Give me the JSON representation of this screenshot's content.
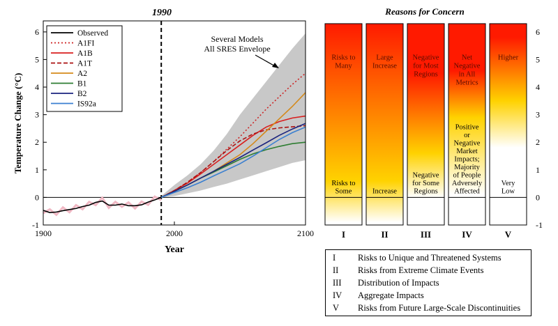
{
  "left_chart": {
    "title": "1990",
    "xlabel": "Year",
    "ylabel": "Temperature Change (°C)",
    "annotation_lines": [
      "Several Models",
      "All SRES Envelope"
    ]
  },
  "right_chart": {
    "title": "Reasons for Concern"
  },
  "concern_key": [
    {
      "numeral": "I",
      "text": "Risks to Unique and Threatened Systems"
    },
    {
      "numeral": "II",
      "text": "Risks from Extreme Climate Events"
    },
    {
      "numeral": "III",
      "text": "Distribution of Impacts"
    },
    {
      "numeral": "IV",
      "text": "Aggregate Impacts"
    },
    {
      "numeral": "V",
      "text": "Risks from Future Large-Scale Discontinuities"
    }
  ],
  "chart_data": [
    {
      "type": "line",
      "title": "1990",
      "xlabel": "Year",
      "ylabel": "Temperature Change (°C)",
      "xlim": [
        1900,
        2100
      ],
      "ylim": [
        -1,
        6.4
      ],
      "xticks": [
        1900,
        2000,
        2100
      ],
      "yticks": [
        -1,
        0,
        1,
        2,
        3,
        4,
        5,
        6
      ],
      "vline_x": 1990,
      "legend": "top-left",
      "observed": {
        "name": "Observed",
        "color": "#000000",
        "x": [
          1900,
          1905,
          1910,
          1915,
          1920,
          1925,
          1930,
          1935,
          1940,
          1945,
          1950,
          1955,
          1960,
          1965,
          1970,
          1975,
          1980,
          1985,
          1990
        ],
        "y": [
          -0.47,
          -0.55,
          -0.53,
          -0.48,
          -0.44,
          -0.4,
          -0.33,
          -0.28,
          -0.18,
          -0.13,
          -0.28,
          -0.28,
          -0.24,
          -0.3,
          -0.3,
          -0.27,
          -0.17,
          -0.09,
          0.0
        ]
      },
      "envelope": {
        "label": "Several Models All SRES Envelope",
        "color": "#c8c8c8",
        "x": [
          1990,
          2000,
          2010,
          2020,
          2030,
          2040,
          2050,
          2060,
          2070,
          2080,
          2090,
          2100
        ],
        "upper": [
          0.05,
          0.45,
          0.8,
          1.2,
          1.7,
          2.3,
          3.0,
          3.6,
          4.2,
          4.8,
          5.4,
          5.95
        ],
        "lower": [
          0.0,
          0.05,
          0.15,
          0.25,
          0.38,
          0.5,
          0.65,
          0.8,
          0.95,
          1.1,
          1.25,
          1.35
        ]
      },
      "x": [
        1990,
        2000,
        2010,
        2020,
        2030,
        2040,
        2050,
        2060,
        2070,
        2080,
        2090,
        2100
      ],
      "series": [
        {
          "name": "A1FI",
          "color": "#cc2222",
          "dash": "2,3",
          "values": [
            0.0,
            0.25,
            0.55,
            0.9,
            1.3,
            1.75,
            2.2,
            2.7,
            3.2,
            3.65,
            4.1,
            4.5
          ]
        },
        {
          "name": "A1B",
          "color": "#d81e1e",
          "dash": "",
          "values": [
            0.0,
            0.25,
            0.52,
            0.85,
            1.2,
            1.55,
            1.9,
            2.25,
            2.55,
            2.75,
            2.88,
            2.95
          ]
        },
        {
          "name": "A1T",
          "color": "#aa1111",
          "dash": "6,3",
          "values": [
            0.0,
            0.25,
            0.55,
            0.9,
            1.3,
            1.7,
            2.05,
            2.3,
            2.45,
            2.52,
            2.56,
            2.6
          ]
        },
        {
          "name": "A2",
          "color": "#d4891a",
          "dash": "",
          "values": [
            0.0,
            0.22,
            0.45,
            0.7,
            0.95,
            1.25,
            1.55,
            1.95,
            2.4,
            2.85,
            3.3,
            3.8
          ]
        },
        {
          "name": "B1",
          "color": "#2e7d32",
          "dash": "",
          "values": [
            0.0,
            0.22,
            0.45,
            0.7,
            0.92,
            1.15,
            1.38,
            1.58,
            1.73,
            1.85,
            1.95,
            2.0
          ]
        },
        {
          "name": "B2",
          "color": "#1a237e",
          "dash": "",
          "values": [
            0.0,
            0.22,
            0.45,
            0.7,
            0.95,
            1.2,
            1.45,
            1.72,
            1.98,
            2.25,
            2.48,
            2.68
          ]
        },
        {
          "name": "IS92a",
          "color": "#3a7fd0",
          "dash": "",
          "values": [
            0.0,
            0.18,
            0.35,
            0.55,
            0.78,
            1.0,
            1.22,
            1.5,
            1.8,
            2.1,
            2.35,
            2.55
          ]
        }
      ]
    },
    {
      "type": "bar",
      "title": "Reasons for Concern",
      "ylim": [
        -1,
        6.4
      ],
      "yticks": [
        -1,
        0,
        1,
        2,
        3,
        4,
        5,
        6
      ],
      "axis_side": "right",
      "categories": [
        "I",
        "II",
        "III",
        "IV",
        "V"
      ],
      "colors": {
        "high": "#ff1a00",
        "mid": "#ffd200",
        "low": "#ffffff"
      },
      "bars": [
        {
          "numeral": "I",
          "top": 6.3,
          "bottom": -1,
          "high_level": 6.3,
          "mid_level": 0.6,
          "low_level": -0.9,
          "upper_label": [
            "Risks to",
            "Many"
          ],
          "lower_label": [
            "Risks to",
            "Some"
          ]
        },
        {
          "numeral": "II",
          "top": 6.3,
          "bottom": -1,
          "high_level": 6.3,
          "mid_level": 0.6,
          "low_level": -0.9,
          "upper_label": [
            "Large",
            "Increase"
          ],
          "lower_label": [
            "Increase"
          ]
        },
        {
          "numeral": "III",
          "top": 6.3,
          "bottom": -1,
          "high_level": 4.5,
          "mid_level": 1.6,
          "low_level": 0.0,
          "upper_label": [
            "Negative",
            "for Most",
            "Regions"
          ],
          "lower_label": [
            "Negative",
            "for Some",
            "Regions"
          ]
        },
        {
          "numeral": "IV",
          "top": 6.3,
          "bottom": -1,
          "high_level": 4.6,
          "mid_level": 2.9,
          "low_level": 0.1,
          "upper_label": [
            "Net",
            "Negative",
            "in All",
            "Metrics"
          ],
          "lower_label": [
            "Positive",
            "or",
            "Negative",
            "Market",
            "Impacts;",
            "Majority",
            "of People",
            "Adversely",
            "Affected"
          ]
        },
        {
          "numeral": "V",
          "top": 6.3,
          "bottom": -1,
          "high_level": 5.8,
          "mid_level": 3.5,
          "low_level": 1.8,
          "upper_label": [
            "Higher"
          ],
          "lower_label": [
            "Very",
            "Low"
          ]
        }
      ]
    }
  ]
}
